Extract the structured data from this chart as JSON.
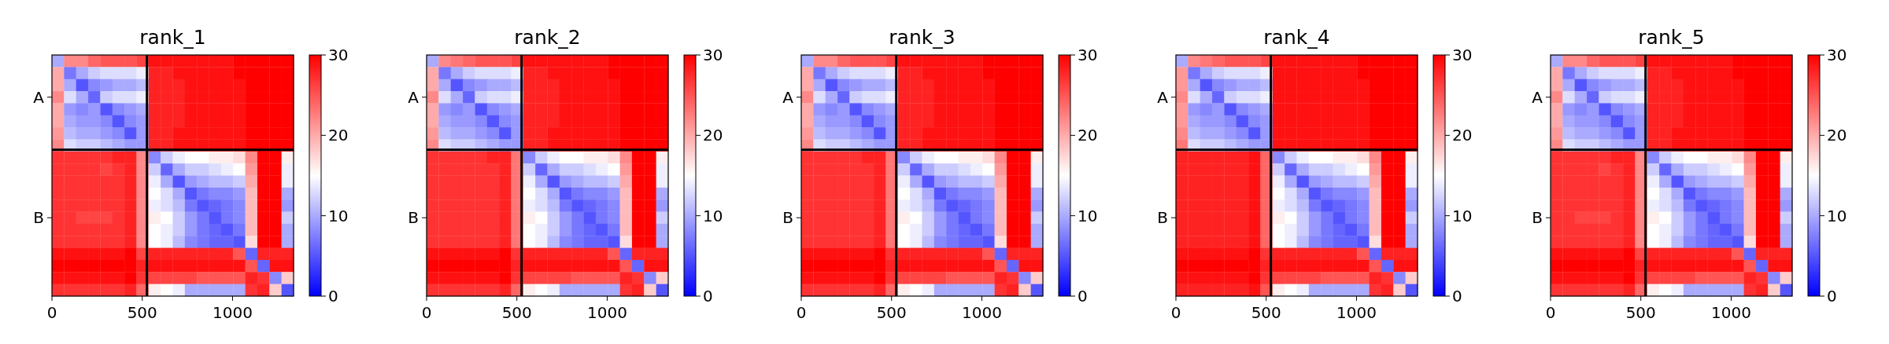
{
  "chart_data": [
    {
      "type": "heatmap",
      "title": "rank_1",
      "xlim": [
        0,
        1338
      ],
      "xticks": [
        0,
        500,
        1000
      ],
      "y_categories": [
        null,
        null,
        null,
        "A",
        null,
        null,
        null,
        null,
        null,
        null,
        null,
        null,
        null,
        "B",
        null,
        null,
        null,
        null,
        null,
        null
      ],
      "clim": [
        0,
        30
      ],
      "cticks": [
        0,
        10,
        20,
        30
      ],
      "colors": [
        "#0000ff",
        "#ffffff",
        "#ff0000"
      ],
      "ref_lines": [
        {
          "axis": "x",
          "value": 526,
          "color": "#000000"
        }
      ],
      "cells": [
        [
          10,
          22,
          22,
          24,
          25,
          25,
          25,
          26,
          29,
          29,
          29,
          29,
          29,
          29,
          29,
          30,
          30,
          30,
          30,
          30
        ],
        [
          20,
          7,
          10,
          12,
          13,
          13,
          13,
          14,
          28,
          28,
          29,
          29,
          29,
          29,
          29,
          30,
          30,
          30,
          30,
          30
        ],
        [
          20,
          10,
          5,
          8,
          9,
          10,
          10,
          11,
          28,
          28,
          28,
          29,
          29,
          29,
          29,
          29,
          30,
          30,
          30,
          30
        ],
        [
          22,
          13,
          10,
          6,
          12,
          13,
          13,
          14,
          28,
          28,
          28,
          29,
          29,
          29,
          29,
          29,
          30,
          30,
          30,
          30
        ],
        [
          20,
          9,
          8,
          9,
          5,
          8,
          9,
          10,
          28,
          28,
          28,
          29,
          29,
          29,
          29,
          29,
          30,
          30,
          30,
          30
        ],
        [
          20,
          10,
          9,
          9,
          8,
          5,
          8,
          9,
          28,
          28,
          28,
          29,
          29,
          29,
          29,
          29,
          30,
          30,
          30,
          30
        ],
        [
          21,
          11,
          10,
          10,
          9,
          8,
          5,
          9,
          28,
          28,
          29,
          29,
          29,
          29,
          29,
          29,
          30,
          30,
          30,
          30
        ],
        [
          22,
          13,
          12,
          12,
          11,
          10,
          9,
          9,
          28,
          28,
          29,
          29,
          29,
          29,
          29,
          29,
          30,
          30,
          30,
          30
        ],
        [
          27,
          27,
          27,
          27,
          27,
          28,
          28,
          22,
          8,
          12,
          14,
          15,
          15,
          16,
          16,
          17,
          22,
          30,
          30,
          16
        ],
        [
          27,
          27,
          27,
          27,
          26,
          27,
          28,
          22,
          12,
          6,
          10,
          12,
          12,
          13,
          14,
          15,
          21,
          30,
          30,
          14
        ],
        [
          27,
          27,
          27,
          27,
          27,
          27,
          28,
          22,
          14,
          10,
          5,
          9,
          10,
          11,
          11,
          12,
          20,
          30,
          30,
          14
        ],
        [
          27,
          27,
          27,
          27,
          27,
          27,
          28,
          22,
          15,
          13,
          10,
          5,
          7,
          8,
          8,
          9,
          19,
          30,
          30,
          10
        ],
        [
          27,
          27,
          27,
          27,
          27,
          27,
          28,
          22,
          14,
          13,
          11,
          7,
          5,
          6,
          7,
          8,
          19,
          30,
          30,
          9
        ],
        [
          27,
          27,
          26,
          26,
          26,
          27,
          28,
          22,
          16,
          15,
          12,
          9,
          7,
          5,
          7,
          8,
          19,
          30,
          30,
          12
        ],
        [
          27,
          27,
          27,
          27,
          27,
          27,
          28,
          22,
          15,
          14,
          12,
          9,
          7,
          6,
          5,
          7,
          19,
          30,
          30,
          10
        ],
        [
          27,
          27,
          27,
          27,
          27,
          27,
          28,
          22,
          15,
          14,
          11,
          8,
          7,
          6,
          6,
          5,
          17,
          30,
          30,
          10
        ],
        [
          29,
          29,
          29,
          29,
          29,
          29,
          30,
          26,
          28,
          28,
          28,
          28,
          28,
          28,
          28,
          25,
          6,
          28,
          28,
          28
        ],
        [
          30,
          30,
          30,
          30,
          30,
          30,
          30,
          28,
          29,
          29,
          29,
          29,
          29,
          29,
          29,
          29,
          25,
          6,
          29,
          29
        ],
        [
          29,
          29,
          29,
          29,
          29,
          29,
          30,
          27,
          26,
          26,
          26,
          26,
          25,
          25,
          25,
          25,
          28,
          27,
          8,
          18
        ],
        [
          27,
          27,
          27,
          27,
          27,
          27,
          28,
          24,
          16,
          15,
          14,
          10,
          10,
          10,
          10,
          10,
          27,
          28,
          18,
          5
        ]
      ]
    },
    {
      "type": "heatmap",
      "title": "rank_2",
      "xlim": [
        0,
        1338
      ],
      "xticks": [
        0,
        500,
        1000
      ],
      "y_categories": [
        null,
        null,
        null,
        "A",
        null,
        null,
        null,
        null,
        null,
        null,
        null,
        null,
        null,
        "B",
        null,
        null,
        null,
        null,
        null,
        null
      ],
      "clim": [
        0,
        30
      ],
      "cticks": [
        0,
        10,
        20,
        30
      ],
      "colors": [
        "#0000ff",
        "#ffffff",
        "#ff0000"
      ],
      "ref_lines": [
        {
          "axis": "x",
          "value": 526,
          "color": "#000000"
        }
      ],
      "cells": [
        [
          10,
          22,
          23,
          24,
          25,
          25,
          25,
          26,
          29,
          29,
          29,
          29,
          29,
          29,
          29,
          30,
          30,
          30,
          30,
          30
        ],
        [
          20,
          7,
          10,
          12,
          13,
          13,
          13,
          14,
          28,
          28,
          29,
          29,
          29,
          29,
          29,
          30,
          30,
          30,
          30,
          30
        ],
        [
          20,
          10,
          5,
          8,
          9,
          10,
          10,
          11,
          28,
          28,
          28,
          29,
          29,
          29,
          29,
          29,
          30,
          30,
          30,
          30
        ],
        [
          22,
          13,
          10,
          6,
          12,
          13,
          13,
          14,
          28,
          28,
          28,
          29,
          29,
          29,
          29,
          29,
          30,
          30,
          30,
          30
        ],
        [
          20,
          9,
          8,
          9,
          5,
          8,
          9,
          10,
          28,
          28,
          28,
          29,
          29,
          29,
          29,
          29,
          30,
          30,
          30,
          30
        ],
        [
          20,
          10,
          9,
          9,
          8,
          5,
          8,
          9,
          28,
          28,
          28,
          29,
          29,
          29,
          29,
          29,
          30,
          30,
          30,
          30
        ],
        [
          21,
          11,
          10,
          10,
          9,
          8,
          5,
          9,
          28,
          28,
          29,
          29,
          29,
          29,
          29,
          29,
          30,
          30,
          30,
          30
        ],
        [
          22,
          13,
          12,
          12,
          11,
          10,
          9,
          9,
          28,
          28,
          29,
          29,
          29,
          29,
          29,
          29,
          30,
          30,
          30,
          30
        ],
        [
          27,
          27,
          27,
          27,
          27,
          28,
          28,
          23,
          8,
          12,
          14,
          15,
          15,
          16,
          16,
          17,
          22,
          30,
          30,
          16
        ],
        [
          27,
          27,
          27,
          27,
          27,
          27,
          28,
          23,
          12,
          6,
          10,
          12,
          12,
          13,
          14,
          15,
          21,
          30,
          30,
          14
        ],
        [
          27,
          27,
          27,
          27,
          27,
          27,
          28,
          23,
          14,
          10,
          5,
          9,
          10,
          11,
          11,
          12,
          20,
          30,
          30,
          14
        ],
        [
          27,
          27,
          27,
          27,
          27,
          27,
          28,
          23,
          15,
          13,
          10,
          5,
          7,
          8,
          8,
          9,
          19,
          30,
          30,
          10
        ],
        [
          27,
          27,
          27,
          27,
          27,
          27,
          28,
          23,
          14,
          13,
          11,
          7,
          5,
          6,
          7,
          8,
          19,
          30,
          30,
          9
        ],
        [
          27,
          27,
          27,
          27,
          27,
          27,
          28,
          23,
          16,
          15,
          12,
          9,
          7,
          5,
          7,
          8,
          19,
          30,
          30,
          12
        ],
        [
          27,
          27,
          27,
          27,
          27,
          27,
          28,
          23,
          15,
          14,
          12,
          9,
          7,
          6,
          5,
          7,
          19,
          30,
          30,
          10
        ],
        [
          27,
          27,
          27,
          27,
          27,
          27,
          28,
          23,
          15,
          14,
          11,
          8,
          7,
          6,
          6,
          5,
          17,
          30,
          30,
          10
        ],
        [
          29,
          29,
          29,
          29,
          29,
          29,
          30,
          27,
          28,
          28,
          28,
          28,
          28,
          28,
          28,
          25,
          6,
          28,
          28,
          28
        ],
        [
          30,
          30,
          30,
          30,
          30,
          30,
          30,
          28,
          29,
          29,
          29,
          29,
          29,
          29,
          29,
          29,
          25,
          6,
          29,
          29
        ],
        [
          29,
          29,
          29,
          29,
          29,
          29,
          30,
          27,
          26,
          26,
          26,
          26,
          25,
          25,
          25,
          25,
          28,
          27,
          8,
          18
        ],
        [
          27,
          27,
          27,
          27,
          27,
          27,
          28,
          24,
          16,
          15,
          14,
          10,
          10,
          10,
          10,
          10,
          27,
          28,
          18,
          5
        ]
      ]
    },
    {
      "type": "heatmap",
      "title": "rank_3",
      "xlim": [
        0,
        1338
      ],
      "xticks": [
        0,
        500,
        1000
      ],
      "y_categories": [
        null,
        null,
        null,
        "A",
        null,
        null,
        null,
        null,
        null,
        null,
        null,
        null,
        null,
        "B",
        null,
        null,
        null,
        null,
        null,
        null
      ],
      "clim": [
        0,
        30
      ],
      "cticks": [
        0,
        10,
        20,
        30
      ],
      "colors": [
        "#0000ff",
        "#ffffff",
        "#ff0000"
      ],
      "ref_lines": [
        {
          "axis": "x",
          "value": 526,
          "color": "#000000"
        }
      ],
      "cells": [
        [
          10,
          22,
          22,
          24,
          25,
          25,
          25,
          26,
          29,
          29,
          29,
          29,
          29,
          29,
          29,
          30,
          30,
          30,
          30,
          30
        ],
        [
          20,
          7,
          10,
          12,
          13,
          13,
          13,
          14,
          28,
          28,
          29,
          29,
          29,
          29,
          29,
          30,
          30,
          30,
          30,
          30
        ],
        [
          20,
          10,
          5,
          8,
          9,
          10,
          10,
          11,
          28,
          28,
          28,
          29,
          29,
          29,
          29,
          29,
          30,
          30,
          30,
          30
        ],
        [
          22,
          13,
          10,
          6,
          12,
          13,
          13,
          14,
          28,
          28,
          28,
          29,
          29,
          29,
          29,
          29,
          30,
          30,
          30,
          30
        ],
        [
          20,
          9,
          8,
          9,
          5,
          8,
          9,
          10,
          28,
          28,
          28,
          29,
          29,
          29,
          29,
          29,
          30,
          30,
          30,
          30
        ],
        [
          20,
          10,
          9,
          9,
          8,
          5,
          8,
          9,
          28,
          28,
          28,
          29,
          29,
          29,
          29,
          29,
          30,
          30,
          30,
          30
        ],
        [
          21,
          11,
          10,
          10,
          9,
          8,
          5,
          9,
          28,
          28,
          29,
          29,
          29,
          29,
          29,
          29,
          30,
          30,
          30,
          30
        ],
        [
          22,
          13,
          12,
          12,
          11,
          10,
          9,
          9,
          28,
          28,
          29,
          29,
          29,
          29,
          29,
          29,
          30,
          30,
          30,
          30
        ],
        [
          27,
          27,
          27,
          27,
          27,
          28,
          28,
          23,
          8,
          12,
          14,
          15,
          15,
          16,
          16,
          17,
          22,
          30,
          30,
          16
        ],
        [
          27,
          27,
          27,
          27,
          27,
          27,
          28,
          23,
          12,
          6,
          10,
          12,
          12,
          13,
          14,
          15,
          21,
          30,
          30,
          14
        ],
        [
          27,
          27,
          27,
          27,
          27,
          27,
          28,
          23,
          14,
          10,
          5,
          9,
          10,
          11,
          11,
          12,
          20,
          30,
          30,
          14
        ],
        [
          27,
          27,
          27,
          27,
          27,
          27,
          28,
          23,
          15,
          13,
          10,
          5,
          7,
          8,
          8,
          9,
          19,
          30,
          30,
          10
        ],
        [
          27,
          27,
          27,
          27,
          27,
          27,
          28,
          23,
          14,
          13,
          11,
          7,
          5,
          6,
          7,
          8,
          19,
          30,
          30,
          9
        ],
        [
          27,
          27,
          27,
          27,
          27,
          27,
          28,
          23,
          16,
          15,
          12,
          9,
          7,
          5,
          7,
          8,
          19,
          30,
          30,
          12
        ],
        [
          27,
          27,
          27,
          27,
          27,
          27,
          28,
          23,
          15,
          14,
          12,
          9,
          7,
          6,
          5,
          7,
          19,
          30,
          30,
          10
        ],
        [
          27,
          27,
          27,
          27,
          27,
          27,
          28,
          23,
          15,
          14,
          11,
          8,
          7,
          6,
          6,
          5,
          17,
          30,
          30,
          10
        ],
        [
          29,
          29,
          29,
          29,
          29,
          29,
          30,
          27,
          28,
          28,
          28,
          28,
          28,
          28,
          28,
          25,
          6,
          28,
          28,
          28
        ],
        [
          30,
          30,
          30,
          30,
          30,
          30,
          30,
          28,
          29,
          29,
          29,
          29,
          29,
          29,
          29,
          29,
          25,
          6,
          29,
          29
        ],
        [
          29,
          29,
          29,
          29,
          29,
          29,
          30,
          27,
          26,
          26,
          26,
          26,
          25,
          25,
          25,
          25,
          28,
          27,
          8,
          18
        ],
        [
          27,
          27,
          27,
          27,
          27,
          27,
          28,
          24,
          16,
          15,
          14,
          10,
          10,
          10,
          10,
          10,
          27,
          28,
          18,
          5
        ]
      ]
    },
    {
      "type": "heatmap",
      "title": "rank_4",
      "xlim": [
        0,
        1338
      ],
      "xticks": [
        0,
        500,
        1000
      ],
      "y_categories": [
        null,
        null,
        null,
        "A",
        null,
        null,
        null,
        null,
        null,
        null,
        null,
        null,
        null,
        "B",
        null,
        null,
        null,
        null,
        null,
        null
      ],
      "clim": [
        0,
        30
      ],
      "cticks": [
        0,
        10,
        20,
        30
      ],
      "colors": [
        "#0000ff",
        "#ffffff",
        "#ff0000"
      ],
      "ref_lines": [
        {
          "axis": "x",
          "value": 526,
          "color": "#000000"
        }
      ],
      "cells": [
        [
          10,
          22,
          23,
          24,
          25,
          25,
          25,
          26,
          29,
          29,
          29,
          29,
          29,
          29,
          29,
          30,
          30,
          30,
          30,
          30
        ],
        [
          21,
          7,
          10,
          12,
          13,
          13,
          13,
          14,
          29,
          29,
          29,
          29,
          29,
          29,
          29,
          30,
          30,
          30,
          30,
          30
        ],
        [
          21,
          10,
          5,
          8,
          9,
          10,
          10,
          11,
          29,
          29,
          29,
          29,
          29,
          29,
          29,
          29,
          30,
          30,
          30,
          30
        ],
        [
          22,
          13,
          10,
          6,
          12,
          13,
          13,
          14,
          29,
          29,
          29,
          29,
          29,
          29,
          29,
          29,
          30,
          30,
          30,
          30
        ],
        [
          21,
          9,
          8,
          9,
          5,
          8,
          9,
          10,
          29,
          29,
          29,
          29,
          29,
          29,
          29,
          29,
          30,
          30,
          30,
          30
        ],
        [
          21,
          10,
          9,
          9,
          8,
          5,
          8,
          9,
          29,
          29,
          29,
          29,
          29,
          29,
          29,
          29,
          30,
          30,
          30,
          30
        ],
        [
          22,
          11,
          10,
          10,
          9,
          8,
          5,
          9,
          29,
          29,
          29,
          29,
          29,
          29,
          29,
          29,
          30,
          30,
          30,
          30
        ],
        [
          23,
          13,
          12,
          12,
          11,
          10,
          9,
          9,
          29,
          29,
          29,
          29,
          29,
          29,
          29,
          29,
          30,
          30,
          30,
          30
        ],
        [
          28,
          28,
          28,
          28,
          28,
          28,
          29,
          24,
          8,
          12,
          14,
          15,
          15,
          16,
          16,
          17,
          22,
          30,
          30,
          16
        ],
        [
          28,
          28,
          28,
          28,
          28,
          28,
          29,
          24,
          12,
          6,
          10,
          12,
          12,
          13,
          14,
          15,
          21,
          30,
          30,
          14
        ],
        [
          28,
          28,
          28,
          28,
          28,
          28,
          29,
          24,
          14,
          10,
          5,
          9,
          10,
          11,
          11,
          12,
          20,
          30,
          30,
          14
        ],
        [
          28,
          28,
          28,
          28,
          28,
          28,
          29,
          24,
          15,
          13,
          10,
          5,
          7,
          8,
          8,
          9,
          19,
          30,
          30,
          10
        ],
        [
          28,
          28,
          28,
          28,
          28,
          28,
          29,
          24,
          14,
          13,
          11,
          7,
          5,
          6,
          7,
          8,
          19,
          30,
          30,
          9
        ],
        [
          28,
          28,
          28,
          28,
          28,
          28,
          29,
          24,
          16,
          15,
          12,
          9,
          7,
          5,
          7,
          8,
          19,
          30,
          30,
          12
        ],
        [
          28,
          28,
          28,
          28,
          28,
          28,
          29,
          24,
          15,
          14,
          12,
          9,
          7,
          6,
          5,
          7,
          19,
          30,
          30,
          10
        ],
        [
          28,
          28,
          28,
          28,
          28,
          28,
          29,
          24,
          15,
          14,
          11,
          8,
          7,
          6,
          6,
          5,
          17,
          30,
          30,
          10
        ],
        [
          29,
          29,
          29,
          29,
          29,
          29,
          30,
          27,
          28,
          28,
          28,
          28,
          28,
          28,
          28,
          25,
          6,
          28,
          28,
          28
        ],
        [
          30,
          30,
          30,
          30,
          30,
          30,
          30,
          28,
          29,
          29,
          29,
          29,
          29,
          29,
          29,
          29,
          25,
          6,
          29,
          29
        ],
        [
          29,
          29,
          29,
          29,
          29,
          29,
          30,
          27,
          26,
          26,
          26,
          26,
          25,
          25,
          25,
          25,
          28,
          27,
          8,
          18
        ],
        [
          28,
          28,
          28,
          28,
          28,
          28,
          29,
          25,
          16,
          15,
          14,
          10,
          10,
          10,
          10,
          10,
          27,
          28,
          18,
          5
        ]
      ]
    },
    {
      "type": "heatmap",
      "title": "rank_5",
      "xlim": [
        0,
        1338
      ],
      "xticks": [
        0,
        500,
        1000
      ],
      "y_categories": [
        null,
        null,
        null,
        "A",
        null,
        null,
        null,
        null,
        null,
        null,
        null,
        null,
        null,
        "B",
        null,
        null,
        null,
        null,
        null,
        null
      ],
      "clim": [
        0,
        30
      ],
      "cticks": [
        0,
        10,
        20,
        30
      ],
      "colors": [
        "#0000ff",
        "#ffffff",
        "#ff0000"
      ],
      "ref_lines": [
        {
          "axis": "x",
          "value": 526,
          "color": "#000000"
        }
      ],
      "cells": [
        [
          10,
          22,
          22,
          24,
          25,
          25,
          25,
          26,
          29,
          29,
          29,
          29,
          29,
          29,
          29,
          30,
          30,
          30,
          30,
          30
        ],
        [
          20,
          7,
          10,
          12,
          13,
          13,
          13,
          14,
          28,
          28,
          29,
          29,
          29,
          29,
          29,
          30,
          30,
          30,
          30,
          30
        ],
        [
          20,
          10,
          5,
          8,
          9,
          10,
          10,
          11,
          28,
          28,
          28,
          29,
          29,
          29,
          29,
          29,
          30,
          30,
          30,
          30
        ],
        [
          22,
          13,
          10,
          6,
          12,
          13,
          13,
          14,
          28,
          28,
          28,
          29,
          29,
          29,
          29,
          29,
          30,
          30,
          30,
          30
        ],
        [
          20,
          9,
          8,
          9,
          5,
          8,
          9,
          10,
          28,
          28,
          28,
          29,
          29,
          29,
          29,
          29,
          30,
          30,
          30,
          30
        ],
        [
          20,
          10,
          9,
          9,
          8,
          5,
          8,
          9,
          28,
          28,
          28,
          29,
          29,
          29,
          29,
          29,
          30,
          30,
          30,
          30
        ],
        [
          21,
          11,
          10,
          10,
          9,
          8,
          5,
          9,
          28,
          28,
          29,
          29,
          29,
          29,
          29,
          29,
          30,
          30,
          30,
          30
        ],
        [
          22,
          13,
          12,
          12,
          11,
          10,
          9,
          9,
          28,
          28,
          29,
          29,
          29,
          29,
          29,
          29,
          30,
          30,
          30,
          30
        ],
        [
          27,
          27,
          27,
          27,
          27,
          28,
          28,
          22,
          8,
          12,
          14,
          15,
          15,
          16,
          16,
          17,
          22,
          30,
          30,
          16
        ],
        [
          27,
          27,
          27,
          27,
          26,
          27,
          28,
          22,
          12,
          6,
          10,
          12,
          12,
          13,
          14,
          15,
          21,
          30,
          30,
          14
        ],
        [
          27,
          27,
          27,
          27,
          27,
          27,
          28,
          22,
          14,
          10,
          5,
          9,
          10,
          11,
          11,
          12,
          20,
          30,
          30,
          14
        ],
        [
          27,
          27,
          27,
          27,
          27,
          27,
          28,
          22,
          15,
          13,
          10,
          5,
          7,
          8,
          8,
          9,
          19,
          30,
          30,
          10
        ],
        [
          27,
          27,
          27,
          27,
          27,
          27,
          28,
          22,
          14,
          13,
          11,
          7,
          5,
          6,
          7,
          8,
          19,
          30,
          30,
          9
        ],
        [
          27,
          27,
          26,
          26,
          26,
          27,
          28,
          22,
          16,
          15,
          12,
          9,
          7,
          5,
          7,
          8,
          19,
          30,
          30,
          12
        ],
        [
          27,
          27,
          27,
          27,
          27,
          27,
          28,
          22,
          15,
          14,
          12,
          9,
          7,
          6,
          5,
          7,
          19,
          30,
          30,
          10
        ],
        [
          27,
          27,
          27,
          27,
          27,
          27,
          28,
          22,
          15,
          14,
          11,
          8,
          7,
          6,
          6,
          5,
          17,
          30,
          30,
          10
        ],
        [
          29,
          29,
          29,
          29,
          29,
          29,
          30,
          26,
          28,
          28,
          28,
          28,
          28,
          28,
          28,
          25,
          6,
          28,
          28,
          28
        ],
        [
          30,
          30,
          30,
          30,
          30,
          30,
          30,
          28,
          29,
          29,
          29,
          29,
          29,
          29,
          29,
          29,
          25,
          6,
          29,
          29
        ],
        [
          29,
          29,
          29,
          29,
          29,
          29,
          30,
          27,
          26,
          26,
          26,
          26,
          25,
          25,
          25,
          25,
          28,
          27,
          8,
          18
        ],
        [
          27,
          27,
          27,
          27,
          27,
          27,
          28,
          24,
          16,
          15,
          14,
          10,
          10,
          10,
          10,
          10,
          27,
          28,
          18,
          5
        ]
      ]
    }
  ]
}
